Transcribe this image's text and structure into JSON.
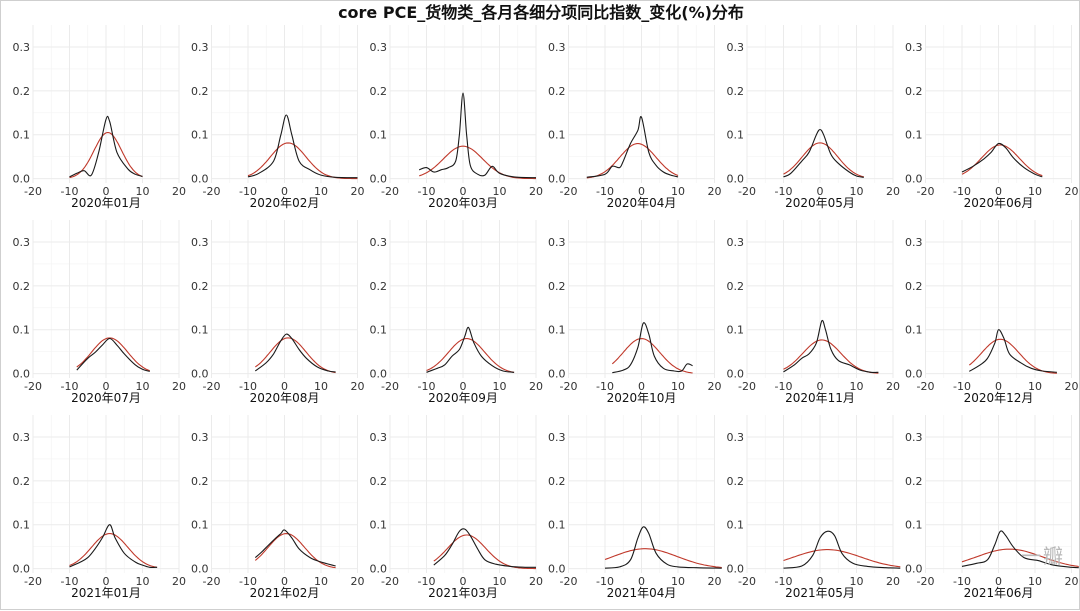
{
  "chart_data": {
    "type": "line",
    "title": "core PCE_货物类_各月各细分项同比指数_变化(%)分布",
    "xlim": [
      -20,
      20
    ],
    "ylim": [
      -0.01,
      0.35
    ],
    "xticks": [
      -20,
      -10,
      0,
      10,
      20
    ],
    "yticks": [
      0.0,
      0.1,
      0.2,
      0.3
    ],
    "xtick_labels": [
      "-20",
      "-10",
      "0",
      "10",
      "20"
    ],
    "ytick_labels": [
      "0.0",
      "0.1",
      "0.2",
      "0.3"
    ],
    "grid": true,
    "colors": {
      "density": "#1a1a1a",
      "normal": "#c0392b",
      "grid": "#ebebeb",
      "tick": "#333333"
    },
    "panels": [
      {
        "label": "2020年01月",
        "x_range": [
          -10,
          10
        ],
        "normal": {
          "mean": 0.5,
          "sd": 3.8
        },
        "density": [
          [
            -10,
            0.004
          ],
          [
            -8,
            0.012
          ],
          [
            -6,
            0.018
          ],
          [
            -4,
            0.008
          ],
          [
            -2,
            0.06
          ],
          [
            0,
            0.135
          ],
          [
            1,
            0.13
          ],
          [
            3,
            0.06
          ],
          [
            6,
            0.022
          ],
          [
            8,
            0.01
          ],
          [
            10,
            0.005
          ]
        ]
      },
      {
        "label": "2020年02月",
        "x_range": [
          -10,
          20
        ],
        "normal": {
          "mean": 1.0,
          "sd": 4.9
        },
        "density": [
          [
            -10,
            0.004
          ],
          [
            -7,
            0.012
          ],
          [
            -3,
            0.04
          ],
          [
            -1,
            0.1
          ],
          [
            0.5,
            0.145
          ],
          [
            2,
            0.1
          ],
          [
            4,
            0.04
          ],
          [
            7,
            0.02
          ],
          [
            10,
            0.008
          ],
          [
            14,
            0.003
          ],
          [
            20,
            0.002
          ]
        ]
      },
      {
        "label": "2020年03月",
        "x_range": [
          -12,
          20
        ],
        "normal": {
          "mean": 0.0,
          "sd": 5.4
        },
        "density": [
          [
            -12,
            0.02
          ],
          [
            -10,
            0.025
          ],
          [
            -8,
            0.015
          ],
          [
            -6,
            0.02
          ],
          [
            -4,
            0.025
          ],
          [
            -2,
            0.04
          ],
          [
            -1,
            0.1
          ],
          [
            0,
            0.195
          ],
          [
            1,
            0.1
          ],
          [
            2,
            0.03
          ],
          [
            4,
            0.01
          ],
          [
            6,
            0.008
          ],
          [
            8,
            0.028
          ],
          [
            10,
            0.012
          ],
          [
            14,
            0.004
          ],
          [
            20,
            0.002
          ]
        ]
      },
      {
        "label": "2020年04月",
        "x_range": [
          -15,
          10
        ],
        "normal": {
          "mean": -1.0,
          "sd": 5.0
        },
        "density": [
          [
            -15,
            0.003
          ],
          [
            -10,
            0.01
          ],
          [
            -8,
            0.028
          ],
          [
            -6,
            0.025
          ],
          [
            -5,
            0.04
          ],
          [
            -3,
            0.08
          ],
          [
            -1,
            0.11
          ],
          [
            0,
            0.14
          ],
          [
            2,
            0.06
          ],
          [
            4,
            0.03
          ],
          [
            6,
            0.015
          ],
          [
            8,
            0.008
          ],
          [
            10,
            0.004
          ]
        ]
      },
      {
        "label": "2020年05月",
        "x_range": [
          -10,
          12
        ],
        "normal": {
          "mean": 0.0,
          "sd": 4.9
        },
        "density": [
          [
            -10,
            0.004
          ],
          [
            -8,
            0.012
          ],
          [
            -5,
            0.04
          ],
          [
            -3,
            0.06
          ],
          [
            -1,
            0.1
          ],
          [
            0,
            0.112
          ],
          [
            1,
            0.1
          ],
          [
            3,
            0.055
          ],
          [
            5,
            0.035
          ],
          [
            8,
            0.015
          ],
          [
            10,
            0.006
          ],
          [
            12,
            0.003
          ]
        ]
      },
      {
        "label": "2020年06月",
        "x_range": [
          -10,
          12
        ],
        "normal": {
          "mean": 0.5,
          "sd": 5.2
        },
        "density": [
          [
            -10,
            0.015
          ],
          [
            -7,
            0.028
          ],
          [
            -4,
            0.045
          ],
          [
            -2,
            0.06
          ],
          [
            0,
            0.08
          ],
          [
            2,
            0.07
          ],
          [
            4,
            0.048
          ],
          [
            7,
            0.025
          ],
          [
            10,
            0.01
          ],
          [
            12,
            0.004
          ]
        ]
      },
      {
        "label": "2020年07月",
        "x_range": [
          -8,
          12
        ],
        "normal": {
          "mean": 1.0,
          "sd": 4.9
        },
        "density": [
          [
            -8,
            0.008
          ],
          [
            -5,
            0.035
          ],
          [
            -3,
            0.048
          ],
          [
            -1,
            0.065
          ],
          [
            1,
            0.08
          ],
          [
            3,
            0.065
          ],
          [
            5,
            0.045
          ],
          [
            8,
            0.02
          ],
          [
            10,
            0.01
          ],
          [
            12,
            0.005
          ]
        ]
      },
      {
        "label": "2020年08月",
        "x_range": [
          -8,
          14
        ],
        "normal": {
          "mean": 1.0,
          "sd": 4.9
        },
        "density": [
          [
            -8,
            0.006
          ],
          [
            -5,
            0.025
          ],
          [
            -3,
            0.045
          ],
          [
            -1,
            0.075
          ],
          [
            0.5,
            0.09
          ],
          [
            2,
            0.08
          ],
          [
            4,
            0.055
          ],
          [
            6,
            0.035
          ],
          [
            9,
            0.015
          ],
          [
            12,
            0.006
          ],
          [
            14,
            0.004
          ]
        ]
      },
      {
        "label": "2020年09月",
        "x_range": [
          -10,
          14
        ],
        "normal": {
          "mean": 1.0,
          "sd": 5.0
        },
        "density": [
          [
            -10,
            0.003
          ],
          [
            -7,
            0.012
          ],
          [
            -5,
            0.02
          ],
          [
            -3,
            0.04
          ],
          [
            -1,
            0.055
          ],
          [
            0.5,
            0.085
          ],
          [
            1.5,
            0.105
          ],
          [
            3,
            0.07
          ],
          [
            5,
            0.04
          ],
          [
            8,
            0.018
          ],
          [
            11,
            0.006
          ],
          [
            14,
            0.003
          ]
        ]
      },
      {
        "label": "2020年10月",
        "x_range": [
          -8,
          14
        ],
        "normal": {
          "mean": 0.0,
          "sd": 5.0
        },
        "density": [
          [
            -8,
            0.002
          ],
          [
            -5,
            0.008
          ],
          [
            -3,
            0.02
          ],
          [
            -1,
            0.06
          ],
          [
            0.5,
            0.115
          ],
          [
            2,
            0.09
          ],
          [
            3.5,
            0.04
          ],
          [
            6,
            0.012
          ],
          [
            9,
            0.006
          ],
          [
            11,
            0.006
          ],
          [
            12.5,
            0.022
          ],
          [
            14,
            0.018
          ]
        ]
      },
      {
        "label": "2020年11月",
        "x_range": [
          -10,
          16
        ],
        "normal": {
          "mean": 0.5,
          "sd": 5.2
        },
        "density": [
          [
            -10,
            0.004
          ],
          [
            -7,
            0.02
          ],
          [
            -5,
            0.035
          ],
          [
            -3,
            0.045
          ],
          [
            -1,
            0.07
          ],
          [
            0.5,
            0.12
          ],
          [
            1.5,
            0.1
          ],
          [
            3,
            0.055
          ],
          [
            5,
            0.03
          ],
          [
            8,
            0.02
          ],
          [
            11,
            0.008
          ],
          [
            14,
            0.003
          ],
          [
            16,
            0.003
          ]
        ]
      },
      {
        "label": "2020年12月",
        "x_range": [
          -8,
          16
        ],
        "normal": {
          "mean": 0.5,
          "sd": 5.1
        },
        "density": [
          [
            -8,
            0.005
          ],
          [
            -5,
            0.02
          ],
          [
            -3,
            0.035
          ],
          [
            -1,
            0.07
          ],
          [
            0,
            0.1
          ],
          [
            1.5,
            0.08
          ],
          [
            3,
            0.045
          ],
          [
            6,
            0.025
          ],
          [
            9,
            0.012
          ],
          [
            12,
            0.006
          ],
          [
            16,
            0.003
          ]
        ]
      },
      {
        "label": "2021年01月",
        "x_range": [
          -10,
          14
        ],
        "normal": {
          "mean": 1.0,
          "sd": 5.0
        },
        "density": [
          [
            -10,
            0.004
          ],
          [
            -7,
            0.015
          ],
          [
            -5,
            0.025
          ],
          [
            -3,
            0.045
          ],
          [
            -1,
            0.07
          ],
          [
            1,
            0.1
          ],
          [
            2.5,
            0.07
          ],
          [
            5,
            0.035
          ],
          [
            8,
            0.015
          ],
          [
            10,
            0.008
          ],
          [
            12,
            0.003
          ],
          [
            14,
            0.003
          ]
        ]
      },
      {
        "label": "2021年02月",
        "x_range": [
          -8,
          14
        ],
        "normal": {
          "mean": 0.5,
          "sd": 5.0
        },
        "density": [
          [
            -8,
            0.025
          ],
          [
            -6,
            0.04
          ],
          [
            -3,
            0.065
          ],
          [
            -1,
            0.08
          ],
          [
            0,
            0.088
          ],
          [
            2,
            0.07
          ],
          [
            4,
            0.045
          ],
          [
            7,
            0.025
          ],
          [
            10,
            0.015
          ],
          [
            14,
            0.006
          ]
        ]
      },
      {
        "label": "2021年03月",
        "x_range": [
          -8,
          20
        ],
        "normal": {
          "mean": 1.0,
          "sd": 5.2
        },
        "density": [
          [
            -8,
            0.008
          ],
          [
            -5,
            0.03
          ],
          [
            -3,
            0.055
          ],
          [
            -1,
            0.085
          ],
          [
            0.5,
            0.09
          ],
          [
            2,
            0.075
          ],
          [
            4,
            0.045
          ],
          [
            6,
            0.02
          ],
          [
            9,
            0.01
          ],
          [
            13,
            0.005
          ],
          [
            17,
            0.003
          ],
          [
            20,
            0.003
          ]
        ]
      },
      {
        "label": "2021年04月",
        "x_range": [
          -10,
          22
        ],
        "normal": {
          "mean": 1.0,
          "sd": 8.8
        },
        "density": [
          [
            -10,
            0.001
          ],
          [
            -6,
            0.004
          ],
          [
            -3,
            0.02
          ],
          [
            -1,
            0.07
          ],
          [
            0.5,
            0.095
          ],
          [
            2,
            0.08
          ],
          [
            4,
            0.035
          ],
          [
            7,
            0.01
          ],
          [
            10,
            0.004
          ],
          [
            15,
            0.002
          ],
          [
            22,
            0.001
          ]
        ]
      },
      {
        "label": "2021年05月",
        "x_range": [
          -10,
          22
        ],
        "normal": {
          "mean": 2.0,
          "sd": 9.2
        },
        "density": [
          [
            -10,
            0.001
          ],
          [
            -5,
            0.006
          ],
          [
            -2,
            0.03
          ],
          [
            0,
            0.07
          ],
          [
            2,
            0.085
          ],
          [
            4,
            0.075
          ],
          [
            6,
            0.035
          ],
          [
            9,
            0.012
          ],
          [
            13,
            0.005
          ],
          [
            18,
            0.002
          ],
          [
            22,
            0.001
          ]
        ]
      },
      {
        "label": "2021年06月",
        "x_range": [
          -10,
          22
        ],
        "normal": {
          "mean": 3.0,
          "sd": 9.0
        },
        "density": [
          [
            -10,
            0.005
          ],
          [
            -6,
            0.012
          ],
          [
            -3,
            0.02
          ],
          [
            -1,
            0.055
          ],
          [
            0.5,
            0.085
          ],
          [
            2,
            0.075
          ],
          [
            4,
            0.05
          ],
          [
            7,
            0.025
          ],
          [
            11,
            0.018
          ],
          [
            15,
            0.008
          ],
          [
            20,
            0.003
          ],
          [
            22,
            0.002
          ]
        ]
      }
    ]
  },
  "watermark": "一瓣"
}
